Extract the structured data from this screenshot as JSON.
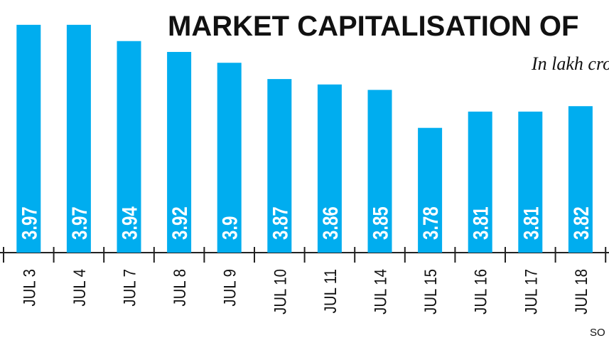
{
  "chart_data": {
    "type": "bar",
    "title": "MARKET CAPITALISATION OF",
    "subtitle": "In lakh crore",
    "source": "SO",
    "categories": [
      "JUL 3",
      "JUL 4",
      "JUL 7",
      "JUL 8",
      "JUL 9",
      "JUL 10",
      "JUL 11",
      "JUL 14",
      "JUL 15",
      "JUL 16",
      "JUL 17",
      "JUL 18"
    ],
    "values": [
      3.97,
      3.97,
      3.94,
      3.92,
      3.9,
      3.87,
      3.86,
      3.85,
      3.78,
      3.81,
      3.81,
      3.82
    ],
    "color": "#00adef",
    "ylim": [
      3.55,
      4.0
    ]
  }
}
